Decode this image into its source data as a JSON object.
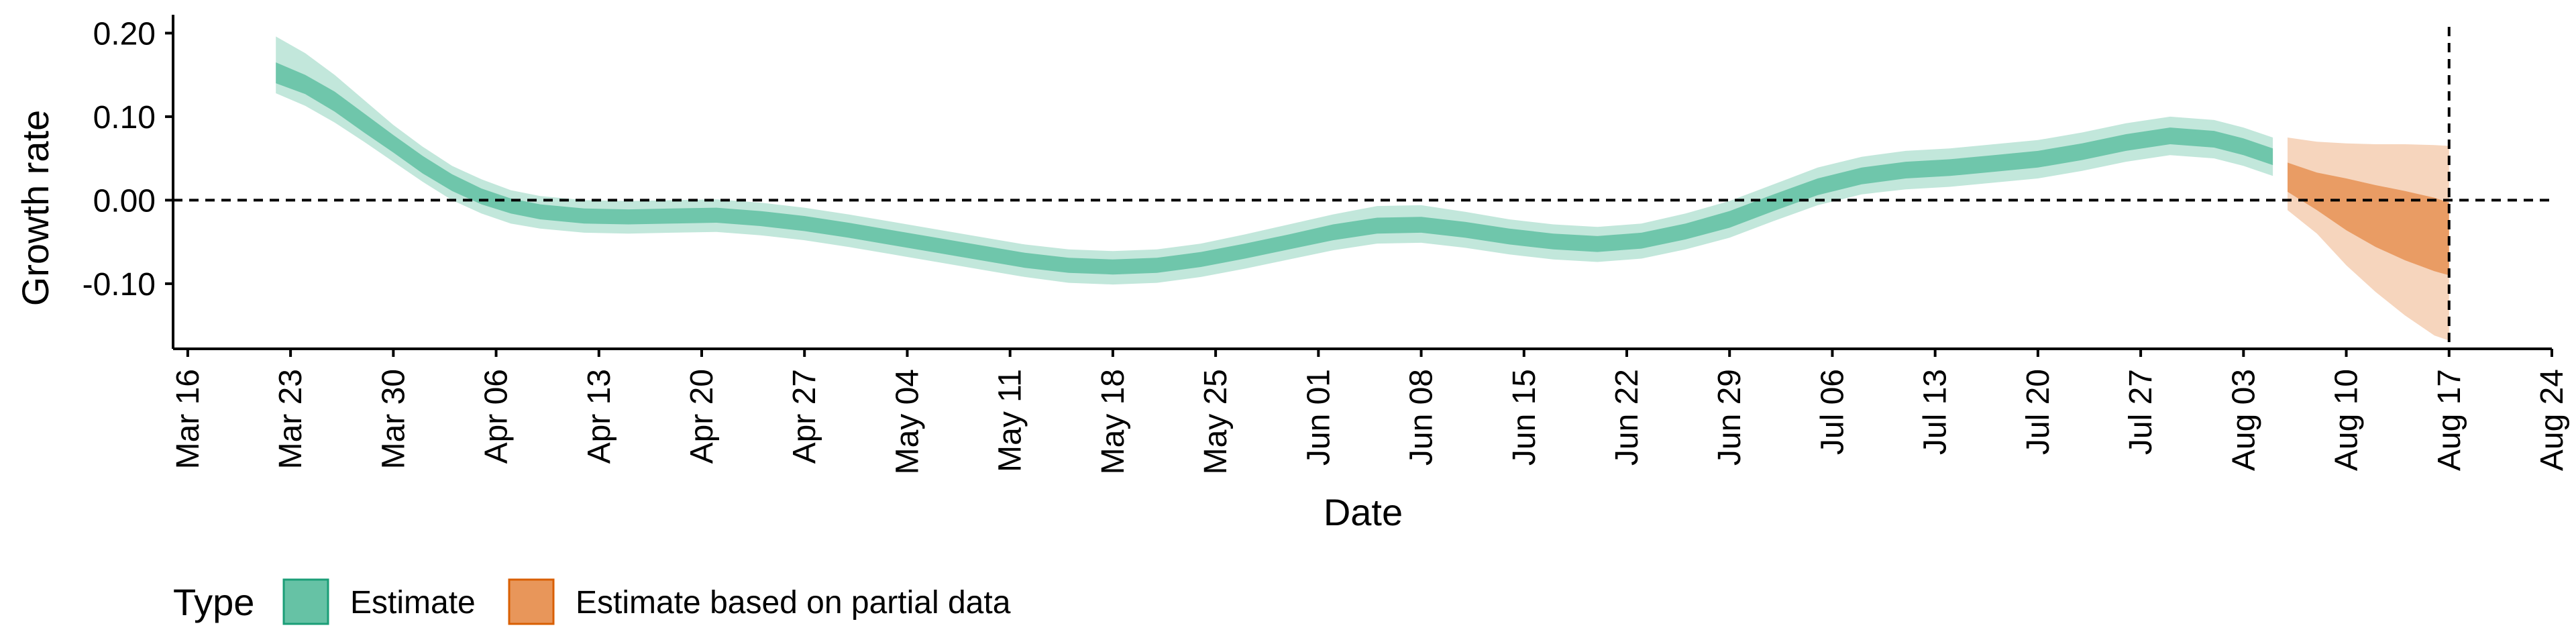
{
  "chart_data": {
    "type": "area",
    "title": "",
    "xlabel": "Date",
    "ylabel": "Growth rate",
    "x_ticks": [
      "Mar 16",
      "Mar 23",
      "Mar 30",
      "Apr 06",
      "Apr 13",
      "Apr 20",
      "Apr 27",
      "May 04",
      "May 11",
      "May 18",
      "May 25",
      "Jun 01",
      "Jun 08",
      "Jun 15",
      "Jun 22",
      "Jun 29",
      "Jul 06",
      "Jul 13",
      "Jul 20",
      "Jul 27",
      "Aug 03",
      "Aug 10",
      "Aug 17",
      "Aug 24"
    ],
    "y_ticks": [
      "0.20",
      "0.10",
      "0.00",
      "-0.10"
    ],
    "y_tick_values": [
      0.2,
      0.1,
      0.0,
      -0.1
    ],
    "ylim": [
      -0.178,
      0.222
    ],
    "xlim": [
      "2020-03-15",
      "2020-08-24"
    ],
    "reference_lines": {
      "horizontal_y": 0.0,
      "vertical_x": "2020-08-17"
    },
    "grid": false,
    "legend": {
      "position": "bottom-left",
      "title": "Type",
      "entries": [
        {
          "label": "Estimate",
          "color": "#66c2a5",
          "border": "#1b9e77"
        },
        {
          "label": "Estimate based on partial data",
          "color": "#e8965a",
          "border": "#d95f02"
        }
      ]
    },
    "series": [
      {
        "name": "Estimate",
        "color": "#66c2a5",
        "points": [
          {
            "x": "2020-03-22",
            "mid": 0.152,
            "inner": [
              0.14,
              0.165
            ],
            "outer": [
              0.128,
              0.196
            ]
          },
          {
            "x": "2020-03-24",
            "mid": 0.138,
            "inner": [
              0.127,
              0.15
            ],
            "outer": [
              0.113,
              0.176
            ]
          },
          {
            "x": "2020-03-26",
            "mid": 0.117,
            "inner": [
              0.106,
              0.13
            ],
            "outer": [
              0.093,
              0.15
            ]
          },
          {
            "x": "2020-03-28",
            "mid": 0.092,
            "inner": [
              0.081,
              0.104
            ],
            "outer": [
              0.07,
              0.12
            ]
          },
          {
            "x": "2020-03-30",
            "mid": 0.068,
            "inner": [
              0.057,
              0.078
            ],
            "outer": [
              0.046,
              0.09
            ]
          },
          {
            "x": "2020-04-01",
            "mid": 0.042,
            "inner": [
              0.032,
              0.053
            ],
            "outer": [
              0.022,
              0.064
            ]
          },
          {
            "x": "2020-04-03",
            "mid": 0.021,
            "inner": [
              0.011,
              0.031
            ],
            "outer": [
              0.0,
              0.041
            ]
          },
          {
            "x": "2020-04-05",
            "mid": 0.005,
            "inner": [
              -0.005,
              0.014
            ],
            "outer": [
              -0.016,
              0.025
            ]
          },
          {
            "x": "2020-04-07",
            "mid": -0.007,
            "inner": [
              -0.016,
              0.002
            ],
            "outer": [
              -0.028,
              0.012
            ]
          },
          {
            "x": "2020-04-09",
            "mid": -0.014,
            "inner": [
              -0.023,
              -0.005
            ],
            "outer": [
              -0.034,
              0.005
            ]
          },
          {
            "x": "2020-04-12",
            "mid": -0.019,
            "inner": [
              -0.028,
              -0.01
            ],
            "outer": [
              -0.039,
              0.0
            ]
          },
          {
            "x": "2020-04-15",
            "mid": -0.02,
            "inner": [
              -0.029,
              -0.011
            ],
            "outer": [
              -0.04,
              -0.001
            ]
          },
          {
            "x": "2020-04-18",
            "mid": -0.019,
            "inner": [
              -0.028,
              -0.01
            ],
            "outer": [
              -0.039,
              0.0
            ]
          },
          {
            "x": "2020-04-21",
            "mid": -0.018,
            "inner": [
              -0.027,
              -0.009
            ],
            "outer": [
              -0.038,
              0.001
            ]
          },
          {
            "x": "2020-04-24",
            "mid": -0.022,
            "inner": [
              -0.031,
              -0.013
            ],
            "outer": [
              -0.042,
              -0.003
            ]
          },
          {
            "x": "2020-04-27",
            "mid": -0.028,
            "inner": [
              -0.037,
              -0.019
            ],
            "outer": [
              -0.048,
              -0.009
            ]
          },
          {
            "x": "2020-04-30",
            "mid": -0.036,
            "inner": [
              -0.045,
              -0.027
            ],
            "outer": [
              -0.056,
              -0.017
            ]
          },
          {
            "x": "2020-05-03",
            "mid": -0.045,
            "inner": [
              -0.054,
              -0.036
            ],
            "outer": [
              -0.065,
              -0.026
            ]
          },
          {
            "x": "2020-05-06",
            "mid": -0.054,
            "inner": [
              -0.063,
              -0.045
            ],
            "outer": [
              -0.074,
              -0.035
            ]
          },
          {
            "x": "2020-05-09",
            "mid": -0.063,
            "inner": [
              -0.072,
              -0.054
            ],
            "outer": [
              -0.083,
              -0.044
            ]
          },
          {
            "x": "2020-05-12",
            "mid": -0.072,
            "inner": [
              -0.081,
              -0.063
            ],
            "outer": [
              -0.092,
              -0.053
            ]
          },
          {
            "x": "2020-05-15",
            "mid": -0.078,
            "inner": [
              -0.087,
              -0.069
            ],
            "outer": [
              -0.099,
              -0.059
            ]
          },
          {
            "x": "2020-05-18",
            "mid": -0.08,
            "inner": [
              -0.089,
              -0.071
            ],
            "outer": [
              -0.101,
              -0.061
            ]
          },
          {
            "x": "2020-05-21",
            "mid": -0.078,
            "inner": [
              -0.087,
              -0.069
            ],
            "outer": [
              -0.099,
              -0.059
            ]
          },
          {
            "x": "2020-05-24",
            "mid": -0.071,
            "inner": [
              -0.08,
              -0.062
            ],
            "outer": [
              -0.092,
              -0.052
            ]
          },
          {
            "x": "2020-05-27",
            "mid": -0.061,
            "inner": [
              -0.07,
              -0.052
            ],
            "outer": [
              -0.082,
              -0.041
            ]
          },
          {
            "x": "2020-05-30",
            "mid": -0.05,
            "inner": [
              -0.059,
              -0.041
            ],
            "outer": [
              -0.071,
              -0.029
            ]
          },
          {
            "x": "2020-06-02",
            "mid": -0.039,
            "inner": [
              -0.048,
              -0.029
            ],
            "outer": [
              -0.06,
              -0.017
            ]
          },
          {
            "x": "2020-06-05",
            "mid": -0.031,
            "inner": [
              -0.04,
              -0.021
            ],
            "outer": [
              -0.052,
              -0.007
            ]
          },
          {
            "x": "2020-06-08",
            "mid": -0.03,
            "inner": [
              -0.039,
              -0.02
            ],
            "outer": [
              -0.051,
              -0.006
            ]
          },
          {
            "x": "2020-06-11",
            "mid": -0.036,
            "inner": [
              -0.045,
              -0.026
            ],
            "outer": [
              -0.057,
              -0.014
            ]
          },
          {
            "x": "2020-06-14",
            "mid": -0.044,
            "inner": [
              -0.053,
              -0.034
            ],
            "outer": [
              -0.065,
              -0.023
            ]
          },
          {
            "x": "2020-06-17",
            "mid": -0.05,
            "inner": [
              -0.059,
              -0.04
            ],
            "outer": [
              -0.071,
              -0.029
            ]
          },
          {
            "x": "2020-06-20",
            "mid": -0.053,
            "inner": [
              -0.062,
              -0.043
            ],
            "outer": [
              -0.074,
              -0.032
            ]
          },
          {
            "x": "2020-06-23",
            "mid": -0.049,
            "inner": [
              -0.058,
              -0.039
            ],
            "outer": [
              -0.07,
              -0.028
            ]
          },
          {
            "x": "2020-06-26",
            "mid": -0.038,
            "inner": [
              -0.047,
              -0.028
            ],
            "outer": [
              -0.059,
              -0.016
            ]
          },
          {
            "x": "2020-06-29",
            "mid": -0.023,
            "inner": [
              -0.033,
              -0.013
            ],
            "outer": [
              -0.045,
              -0.001
            ]
          },
          {
            "x": "2020-07-02",
            "mid": -0.003,
            "inner": [
              -0.013,
              0.007
            ],
            "outer": [
              -0.025,
              0.019
            ]
          },
          {
            "x": "2020-07-05",
            "mid": 0.016,
            "inner": [
              0.006,
              0.026
            ],
            "outer": [
              -0.006,
              0.039
            ]
          },
          {
            "x": "2020-07-08",
            "mid": 0.029,
            "inner": [
              0.019,
              0.039
            ],
            "outer": [
              0.007,
              0.052
            ]
          },
          {
            "x": "2020-07-11",
            "mid": 0.036,
            "inner": [
              0.026,
              0.046
            ],
            "outer": [
              0.013,
              0.059
            ]
          },
          {
            "x": "2020-07-14",
            "mid": 0.039,
            "inner": [
              0.029,
              0.049
            ],
            "outer": [
              0.016,
              0.062
            ]
          },
          {
            "x": "2020-07-17",
            "mid": 0.044,
            "inner": [
              0.034,
              0.054
            ],
            "outer": [
              0.021,
              0.067
            ]
          },
          {
            "x": "2020-07-20",
            "mid": 0.049,
            "inner": [
              0.039,
              0.059
            ],
            "outer": [
              0.026,
              0.072
            ]
          },
          {
            "x": "2020-07-23",
            "mid": 0.058,
            "inner": [
              0.048,
              0.068
            ],
            "outer": [
              0.035,
              0.081
            ]
          },
          {
            "x": "2020-07-26",
            "mid": 0.069,
            "inner": [
              0.059,
              0.079
            ],
            "outer": [
              0.046,
              0.092
            ]
          },
          {
            "x": "2020-07-29",
            "mid": 0.077,
            "inner": [
              0.067,
              0.087
            ],
            "outer": [
              0.054,
              0.1
            ]
          },
          {
            "x": "2020-08-01",
            "mid": 0.073,
            "inner": [
              0.063,
              0.083
            ],
            "outer": [
              0.05,
              0.096
            ]
          },
          {
            "x": "2020-08-03",
            "mid": 0.064,
            "inner": [
              0.054,
              0.074
            ],
            "outer": [
              0.041,
              0.087
            ]
          },
          {
            "x": "2020-08-05",
            "mid": 0.052,
            "inner": [
              0.042,
              0.062
            ],
            "outer": [
              0.029,
              0.075
            ]
          }
        ]
      },
      {
        "name": "Estimate based on partial data",
        "color": "#e8965a",
        "points": [
          {
            "x": "2020-08-06",
            "mid": 0.027,
            "inner": [
              0.01,
              0.045
            ],
            "outer": [
              -0.012,
              0.075
            ]
          },
          {
            "x": "2020-08-08",
            "mid": 0.008,
            "inner": [
              -0.012,
              0.033
            ],
            "outer": [
              -0.04,
              0.07
            ]
          },
          {
            "x": "2020-08-10",
            "mid": -0.012,
            "inner": [
              -0.036,
              0.026
            ],
            "outer": [
              -0.078,
              0.068
            ]
          },
          {
            "x": "2020-08-12",
            "mid": -0.03,
            "inner": [
              -0.056,
              0.018
            ],
            "outer": [
              -0.11,
              0.067
            ]
          },
          {
            "x": "2020-08-14",
            "mid": -0.046,
            "inner": [
              -0.072,
              0.011
            ],
            "outer": [
              -0.138,
              0.067
            ]
          },
          {
            "x": "2020-08-16",
            "mid": -0.06,
            "inner": [
              -0.085,
              0.003
            ],
            "outer": [
              -0.162,
              0.066
            ]
          },
          {
            "x": "2020-08-17",
            "mid": -0.066,
            "inner": [
              -0.09,
              -0.003
            ],
            "outer": [
              -0.168,
              0.065
            ]
          }
        ]
      }
    ]
  }
}
